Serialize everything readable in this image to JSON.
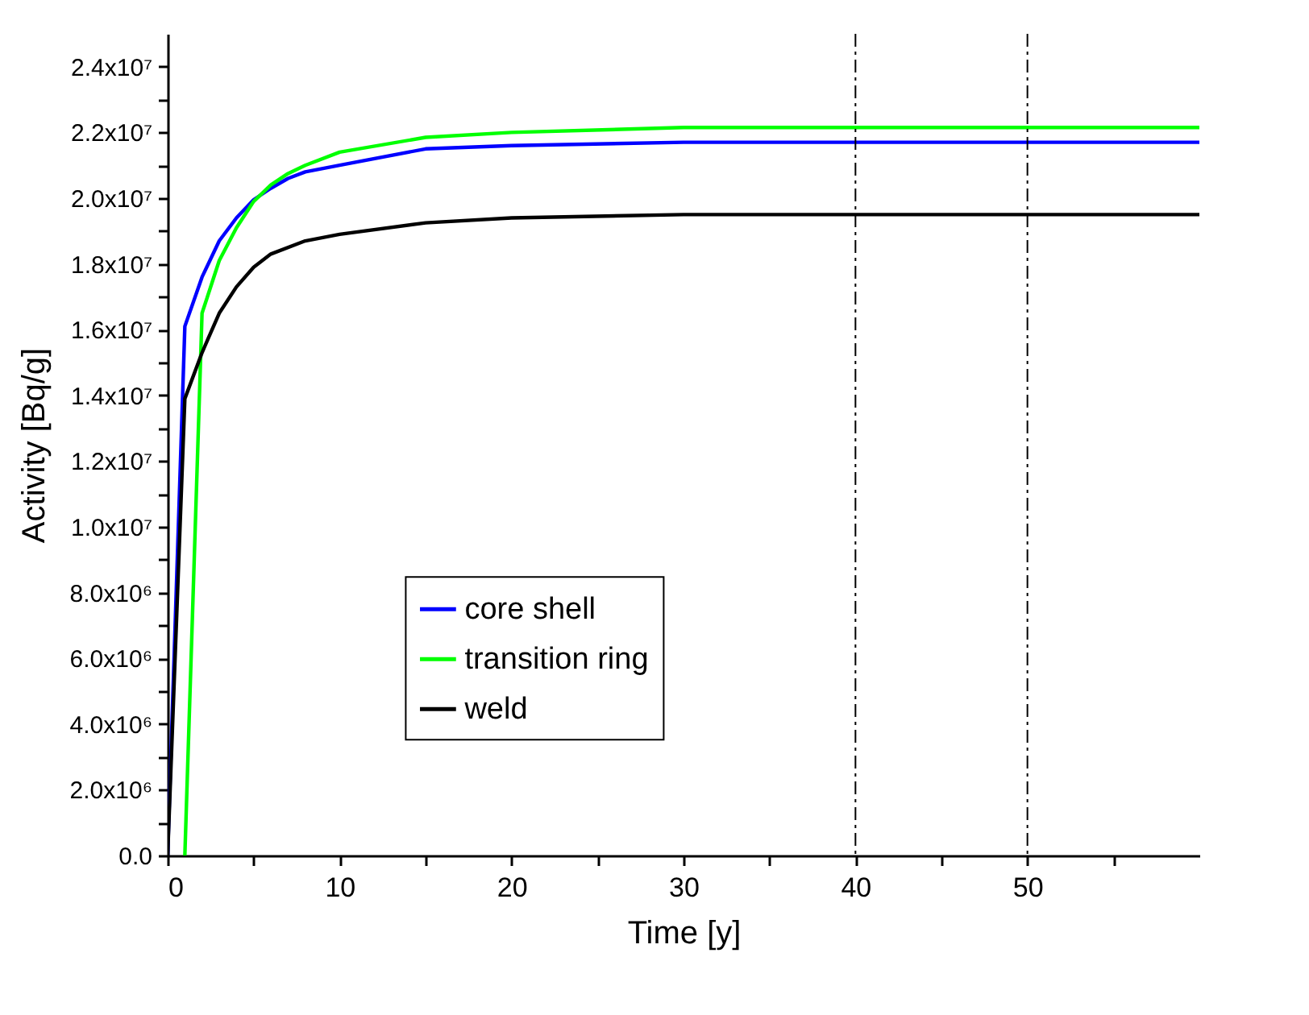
{
  "chart_data": {
    "type": "line",
    "xlabel": "Time [y]",
    "ylabel": "Activity [Bq/g]",
    "xlim": [
      0,
      60
    ],
    "ylim": [
      0,
      25000000
    ],
    "xticks": [
      0,
      {
        "value": 5,
        "label": null
      },
      10,
      {
        "value": 15,
        "label": null
      },
      20,
      {
        "value": 25,
        "label": null
      },
      30,
      {
        "value": 35,
        "label": null
      },
      40,
      {
        "value": 45,
        "label": null
      },
      50,
      {
        "value": 55,
        "label": null
      }
    ],
    "yticks": [
      {
        "value": 0,
        "label": "0.0"
      },
      {
        "value": 1000000,
        "label": null
      },
      {
        "value": 2000000,
        "label": "2.0x10⁶"
      },
      {
        "value": 3000000,
        "label": null
      },
      {
        "value": 4000000,
        "label": "4.0x10⁶"
      },
      {
        "value": 5000000,
        "label": null
      },
      {
        "value": 6000000,
        "label": "6.0x10⁶"
      },
      {
        "value": 7000000,
        "label": null
      },
      {
        "value": 8000000,
        "label": "8.0x10⁶"
      },
      {
        "value": 9000000,
        "label": null
      },
      {
        "value": 10000000,
        "label": "1.0x10⁷"
      },
      {
        "value": 11000000,
        "label": null
      },
      {
        "value": 12000000,
        "label": "1.2x10⁷"
      },
      {
        "value": 13000000,
        "label": null
      },
      {
        "value": 14000000,
        "label": "1.4x10⁷"
      },
      {
        "value": 15000000,
        "label": null
      },
      {
        "value": 16000000,
        "label": "1.6x10⁷"
      },
      {
        "value": 17000000,
        "label": null
      },
      {
        "value": 18000000,
        "label": "1.8x10⁷"
      },
      {
        "value": 19000000,
        "label": null
      },
      {
        "value": 20000000,
        "label": "2.0x10⁷"
      },
      {
        "value": 21000000,
        "label": null
      },
      {
        "value": 22000000,
        "label": "2.2x10⁷"
      },
      {
        "value": 23000000,
        "label": null
      },
      {
        "value": 24000000,
        "label": "2.4x10⁷"
      }
    ],
    "series": [
      {
        "name": "core shell",
        "color": "#0000ff",
        "x": [
          0,
          1,
          2,
          3,
          4,
          5,
          6,
          7,
          8,
          10,
          15,
          20,
          30,
          40,
          50,
          60
        ],
        "values": [
          0,
          16100000,
          17600000,
          18700000,
          19400000,
          19950000,
          20300000,
          20600000,
          20800000,
          21000000,
          21500000,
          21600000,
          21700000,
          21700000,
          21700000,
          21700000
        ]
      },
      {
        "name": "transition ring",
        "color": "#00ff00",
        "x": [
          1,
          2,
          3,
          4,
          5,
          6,
          7,
          8,
          10,
          15,
          20,
          30,
          40,
          50,
          60
        ],
        "values": [
          0,
          16500000,
          18100000,
          19100000,
          19900000,
          20400000,
          20750000,
          21000000,
          21400000,
          21850000,
          22000000,
          22150000,
          22150000,
          22150000,
          22150000
        ]
      },
      {
        "name": "weld",
        "color": "#000000",
        "x": [
          0,
          1,
          2,
          3,
          4,
          5,
          6,
          8,
          10,
          15,
          20,
          30,
          40,
          50,
          60
        ],
        "values": [
          0,
          13900000,
          15300000,
          16500000,
          17300000,
          17900000,
          18300000,
          18700000,
          18900000,
          19250000,
          19400000,
          19500000,
          19500000,
          19500000,
          19500000
        ]
      }
    ],
    "ref_lines": [
      {
        "axis": "x",
        "value": 40,
        "line_style": "dashdot",
        "color": "#000000"
      },
      {
        "axis": "x",
        "value": 50,
        "line_style": "dashdot",
        "color": "#000000"
      }
    ],
    "legend": "bottom",
    "grid": false,
    "marker": "none",
    "line_style": "solid"
  }
}
